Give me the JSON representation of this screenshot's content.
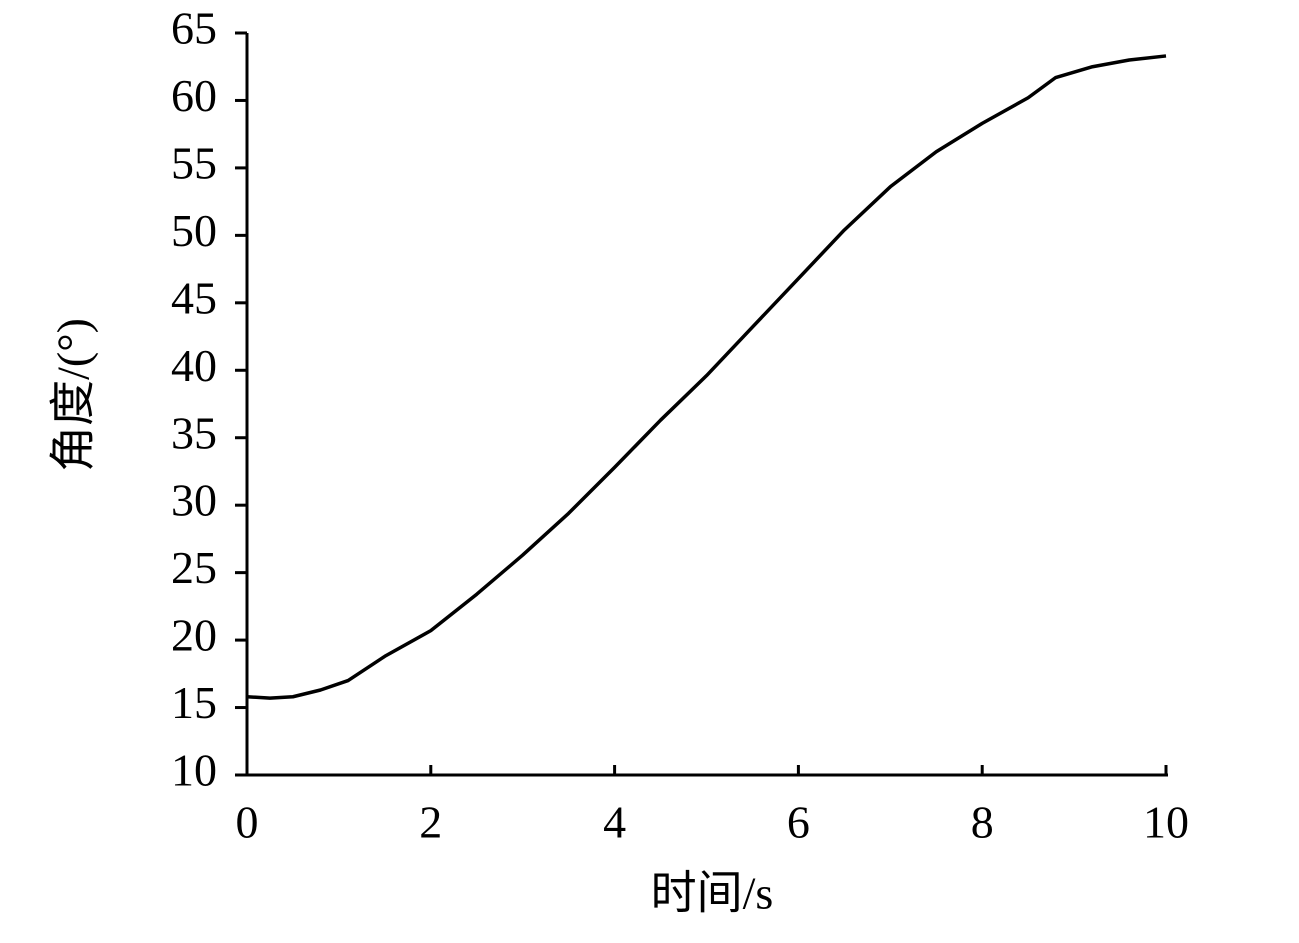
{
  "chart_data": {
    "type": "line",
    "x_label": "时间/s",
    "y_label": "角度/(°)",
    "x": [
      0,
      0.25,
      0.5,
      0.8,
      1.1,
      1.5,
      2,
      2.5,
      3,
      3.5,
      4,
      4.5,
      5,
      5.5,
      6,
      6.5,
      7,
      7.5,
      8,
      8.5,
      8.8,
      9.2,
      9.6,
      10
    ],
    "series": [
      {
        "color": "#000000",
        "values": [
          15.8,
          15.7,
          15.8,
          16.3,
          17.0,
          18.8,
          20.7,
          23.4,
          26.3,
          29.4,
          32.8,
          36.3,
          39.6,
          43.2,
          46.8,
          50.4,
          53.6,
          56.2,
          58.3,
          60.2,
          61.7,
          62.5,
          63.0,
          63.3
        ]
      }
    ],
    "xlim": [
      0,
      10
    ],
    "xticks": [
      0,
      2,
      4,
      6,
      8,
      10
    ],
    "ylim": [
      10,
      65
    ],
    "yticks": [
      10,
      15,
      20,
      25,
      30,
      35,
      40,
      45,
      50,
      55,
      60,
      65
    ]
  }
}
